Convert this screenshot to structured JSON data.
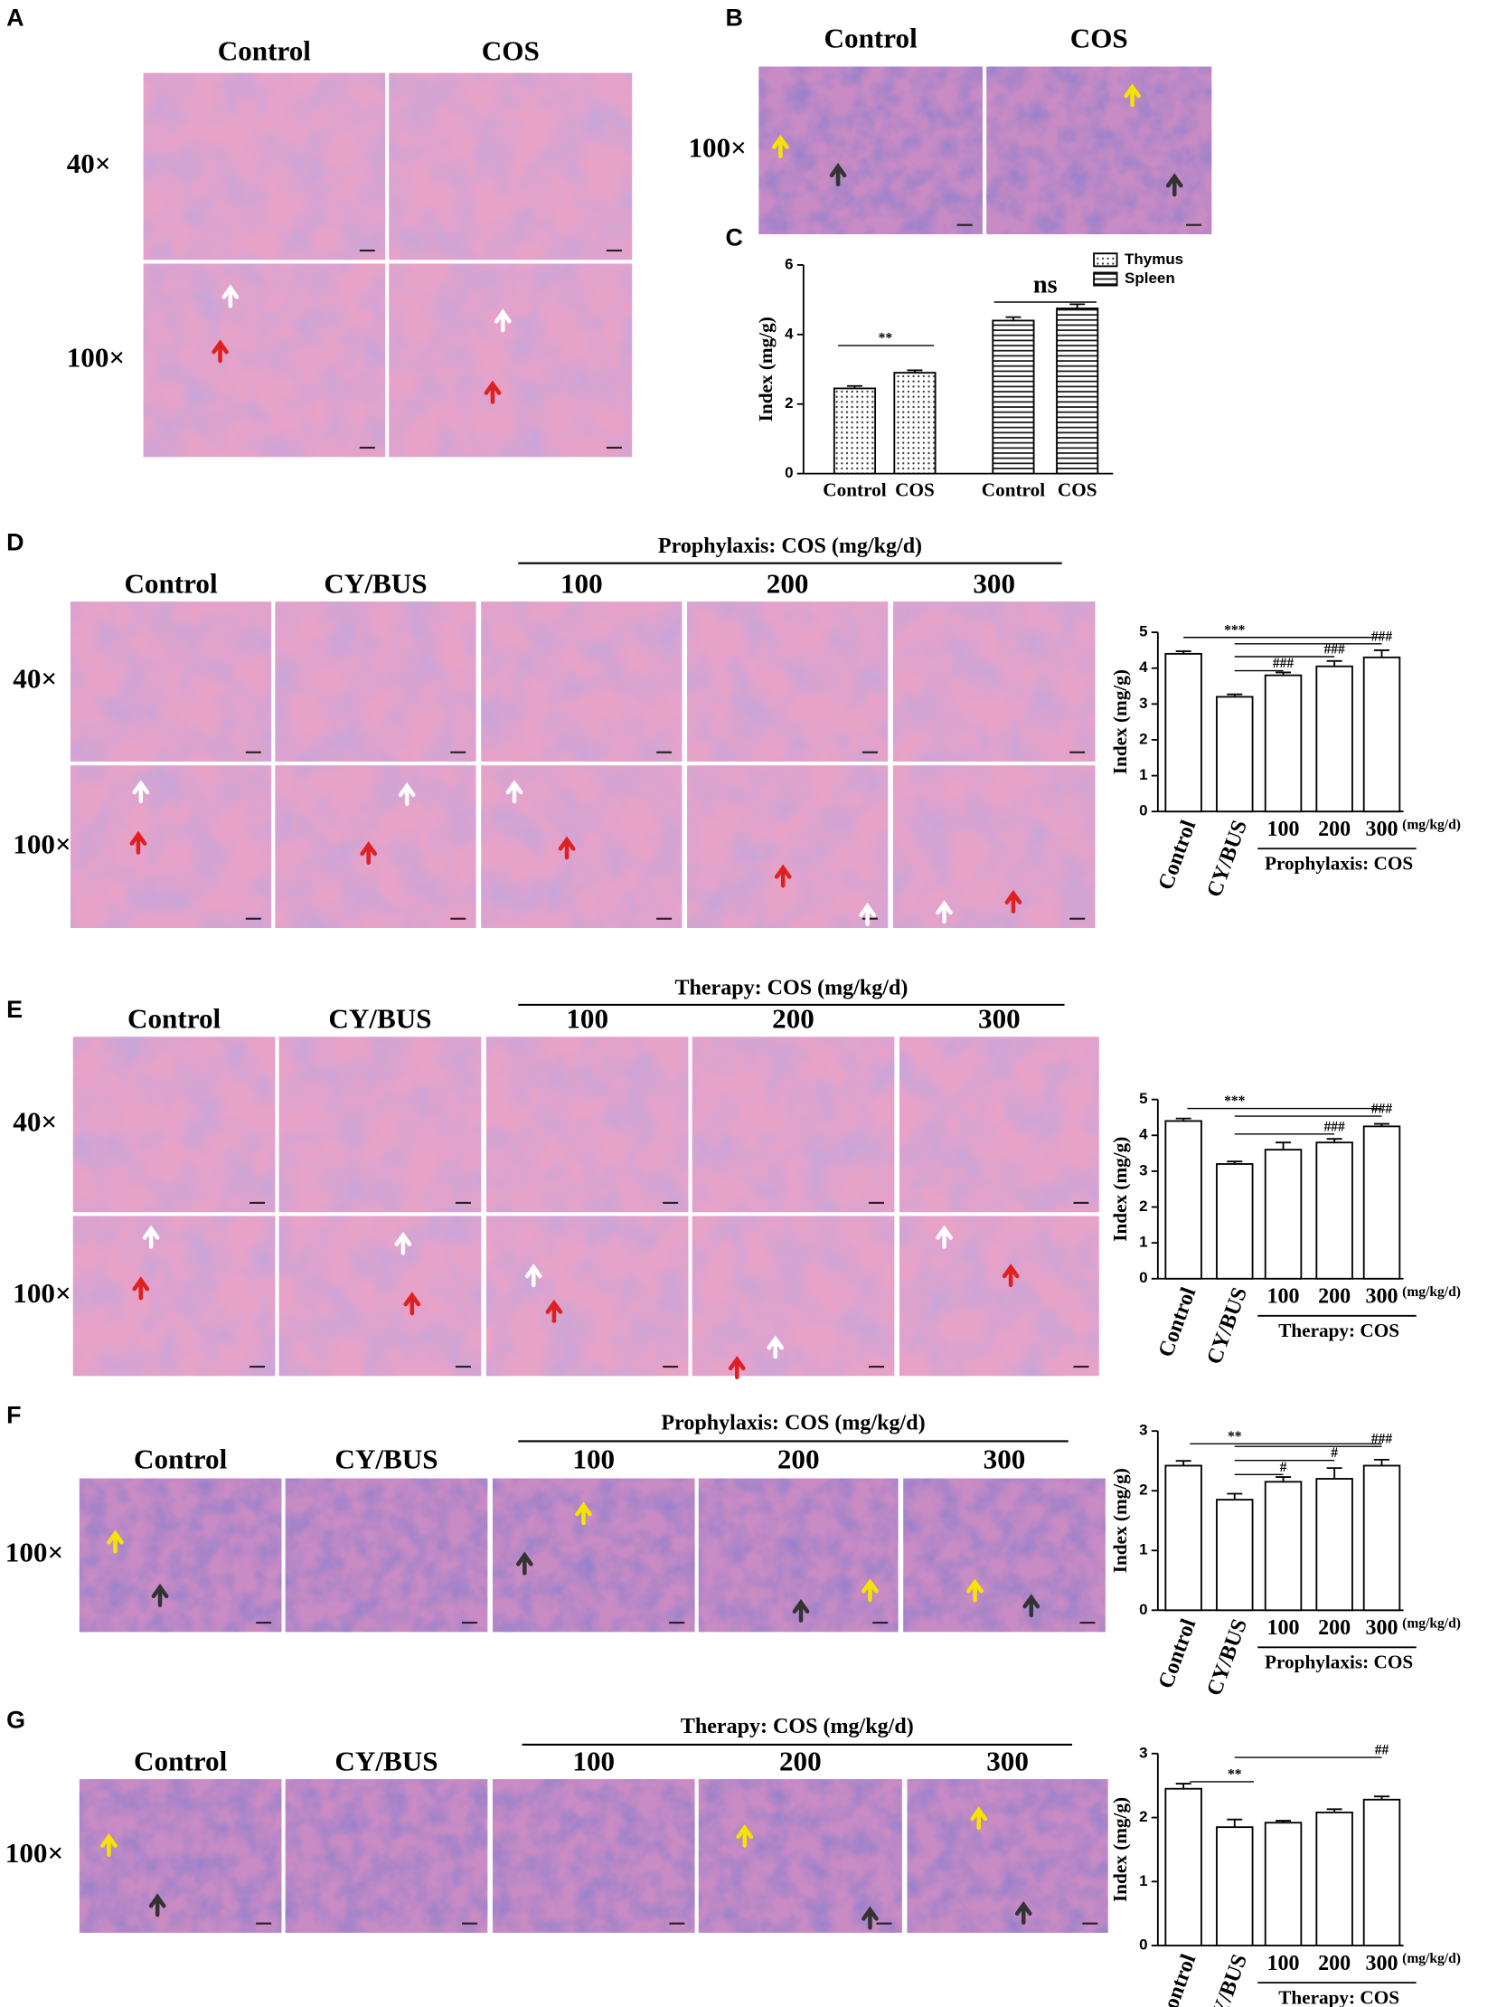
{
  "panels": {
    "A": {
      "letter": "A",
      "columns": [
        "Control",
        "COS"
      ],
      "rows": [
        "40×",
        "100×"
      ]
    },
    "B": {
      "letter": "B",
      "columns": [
        "Control",
        "COS"
      ],
      "rows": [
        "100×"
      ]
    },
    "C": {
      "letter": "C"
    },
    "D": {
      "letter": "D",
      "group": "Prophylaxis: COS (mg/kg/d)",
      "columns": [
        "Control",
        "CY/BUS",
        "100",
        "200",
        "300"
      ],
      "rows": [
        "40×",
        "100×"
      ]
    },
    "E": {
      "letter": "E",
      "group": "Therapy: COS (mg/kg/d)",
      "columns": [
        "Control",
        "CY/BUS",
        "100",
        "200",
        "300"
      ],
      "rows": [
        "40×",
        "100×"
      ]
    },
    "F": {
      "letter": "F",
      "group": "Prophylaxis: COS (mg/kg/d)",
      "columns": [
        "Control",
        "CY/BUS",
        "100",
        "200",
        "300"
      ],
      "rows": [
        "100×"
      ]
    },
    "G": {
      "letter": "G",
      "group": "Therapy: COS (mg/kg/d)",
      "columns": [
        "Control",
        "CY/BUS",
        "100",
        "200",
        "300"
      ],
      "rows": [
        "100×"
      ]
    }
  },
  "chart_data": [
    {
      "type": "grouped_bar",
      "ylabel": "Index (mg/g)",
      "categories": [
        "Control",
        "COS"
      ],
      "series": [
        {
          "name": "Thymus",
          "pattern": "dots",
          "values": [
            2.45,
            2.9
          ],
          "errors": [
            0.07,
            0.07
          ]
        },
        {
          "name": "Spleen",
          "pattern": "stripes",
          "values": [
            4.4,
            4.75
          ],
          "errors": [
            0.1,
            0.12
          ]
        }
      ],
      "ylim": [
        0,
        6
      ],
      "yticks": [
        0,
        2,
        4,
        6
      ],
      "annotations": [
        "**",
        "ns"
      ],
      "legend": "upper right"
    },
    {
      "type": "bar",
      "ylabel": "Index (mg/g)",
      "categories": [
        "Control",
        "CY/BUS",
        "100",
        "200",
        "300"
      ],
      "values": [
        4.4,
        3.2,
        3.8,
        4.05,
        4.3
      ],
      "errors": [
        0.07,
        0.07,
        0.08,
        0.15,
        0.2
      ],
      "ylim": [
        0,
        5
      ],
      "yticks": [
        0,
        1,
        2,
        3,
        4,
        5
      ],
      "group_label": "Prophylaxis: COS",
      "unit_label": "(mg/kg/d)",
      "annotations": [
        "***",
        "###",
        "###",
        "###"
      ],
      "color": "#ffffff"
    },
    {
      "type": "bar",
      "ylabel": "Index (mg/g)",
      "categories": [
        "Control",
        "CY/BUS",
        "100",
        "200",
        "300"
      ],
      "values": [
        4.4,
        3.2,
        3.6,
        3.8,
        4.25
      ],
      "errors": [
        0.07,
        0.07,
        0.2,
        0.1,
        0.07
      ],
      "ylim": [
        0,
        5
      ],
      "yticks": [
        0,
        1,
        2,
        3,
        4,
        5
      ],
      "group_label": "Therapy: COS",
      "unit_label": "(mg/kg/d)",
      "annotations": [
        "***",
        "###",
        "###"
      ],
      "color": "#ffffff"
    },
    {
      "type": "bar",
      "ylabel": "Index (mg/g)",
      "categories": [
        "Control",
        "CY/BUS",
        "100",
        "200",
        "300"
      ],
      "values": [
        2.42,
        1.85,
        2.15,
        2.2,
        2.42
      ],
      "errors": [
        0.08,
        0.1,
        0.08,
        0.18,
        0.1
      ],
      "ylim": [
        0,
        3
      ],
      "yticks": [
        0,
        1,
        2,
        3
      ],
      "group_label": "Prophylaxis: COS",
      "unit_label": "(mg/kg/d)",
      "annotations": [
        "**",
        "#",
        "#",
        "###"
      ],
      "color": "#ffffff"
    },
    {
      "type": "bar",
      "ylabel": "Index (mg/g)",
      "categories": [
        "Control",
        "CY/BUS",
        "100",
        "200",
        "300"
      ],
      "values": [
        2.45,
        1.85,
        1.92,
        2.08,
        2.28
      ],
      "errors": [
        0.08,
        0.12,
        0.03,
        0.05,
        0.05
      ],
      "ylim": [
        0,
        3
      ],
      "yticks": [
        0,
        1,
        2,
        3
      ],
      "group_label": "Therapy: COS",
      "unit_label": "(mg/kg/d)",
      "annotations": [
        "**",
        "##"
      ],
      "color": "#ffffff"
    }
  ]
}
